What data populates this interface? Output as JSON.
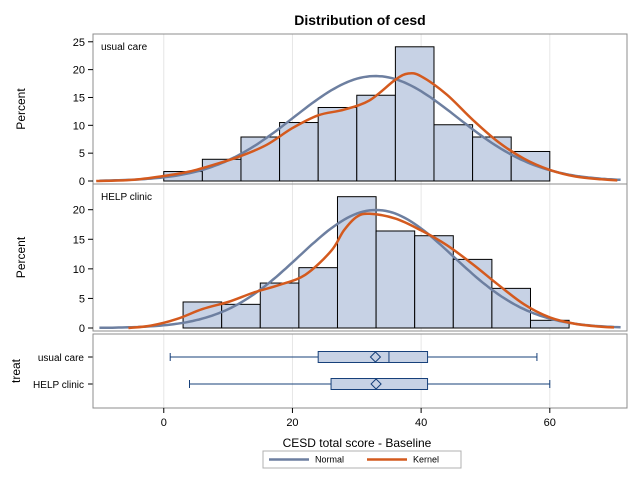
{
  "chart_data": {
    "type": "histogram",
    "title": "Distribution of cesd",
    "xlabel": "CESD total score - Baseline",
    "xlim": [
      -11,
      72
    ],
    "x_ticks": [
      0,
      20,
      40,
      60
    ],
    "colors": {
      "bar_fill": "#c7d2e5",
      "bar_stroke": "#000000",
      "normal": "#6d7fa0",
      "kernel": "#d45a1e",
      "box_stroke": "#17407a",
      "frame": "#8c8c8c",
      "grid": "#e6e6e6"
    },
    "panels": [
      {
        "label": "usual care",
        "ylabel": "Percent",
        "ylim": [
          0,
          25.5
        ],
        "y_ticks": [
          0,
          5,
          10,
          15,
          20,
          25
        ],
        "bins": [
          {
            "start": 0,
            "end": 6,
            "value": 1.7
          },
          {
            "start": 6,
            "end": 12,
            "value": 3.9
          },
          {
            "start": 12,
            "end": 18,
            "value": 7.9
          },
          {
            "start": 18,
            "end": 24,
            "value": 10.5
          },
          {
            "start": 24,
            "end": 30,
            "value": 13.2
          },
          {
            "start": 30,
            "end": 36,
            "value": 15.4
          },
          {
            "start": 36,
            "end": 42,
            "value": 24.1
          },
          {
            "start": 42,
            "end": 48,
            "value": 10.1
          },
          {
            "start": 48,
            "end": 54,
            "value": 7.9
          },
          {
            "start": 54,
            "end": 60,
            "value": 5.3
          }
        ],
        "normal": {
          "mean": 32.9,
          "sd": 12.7
        },
        "kernel": [
          [
            -10.5,
            0
          ],
          [
            -5,
            0.2
          ],
          [
            0,
            0.9
          ],
          [
            4,
            1.7
          ],
          [
            8,
            3
          ],
          [
            12,
            4.5
          ],
          [
            16,
            6.5
          ],
          [
            20,
            9.5
          ],
          [
            24,
            11.8
          ],
          [
            28,
            12.8
          ],
          [
            32,
            14.5
          ],
          [
            36,
            18.2
          ],
          [
            38,
            19.3
          ],
          [
            40,
            18.8
          ],
          [
            44,
            15.5
          ],
          [
            48,
            11
          ],
          [
            52,
            7
          ],
          [
            56,
            4
          ],
          [
            60,
            2
          ],
          [
            64,
            0.8
          ],
          [
            68,
            0.3
          ],
          [
            70.5,
            0.1
          ]
        ]
      },
      {
        "label": "HELP clinic",
        "ylabel": "Percent",
        "ylim": [
          0,
          23.5
        ],
        "y_ticks": [
          0,
          5,
          10,
          15,
          20
        ],
        "bins": [
          {
            "start": 3,
            "end": 9,
            "value": 4.4
          },
          {
            "start": 9,
            "end": 15,
            "value": 4.0
          },
          {
            "start": 15,
            "end": 21,
            "value": 7.6
          },
          {
            "start": 21,
            "end": 27,
            "value": 10.2
          },
          {
            "start": 27,
            "end": 33,
            "value": 22.2
          },
          {
            "start": 33,
            "end": 39,
            "value": 16.4
          },
          {
            "start": 39,
            "end": 45,
            "value": 15.6
          },
          {
            "start": 45,
            "end": 51,
            "value": 11.6
          },
          {
            "start": 51,
            "end": 57,
            "value": 6.7
          },
          {
            "start": 57,
            "end": 63,
            "value": 1.3
          }
        ],
        "normal": {
          "mean": 33.0,
          "sd": 12.0
        },
        "kernel": [
          [
            -5.5,
            0
          ],
          [
            -2,
            0.4
          ],
          [
            2,
            1.5
          ],
          [
            6,
            3.2
          ],
          [
            10,
            4.4
          ],
          [
            14,
            6
          ],
          [
            18,
            7.3
          ],
          [
            22,
            9
          ],
          [
            26,
            13
          ],
          [
            28,
            16.5
          ],
          [
            30,
            18.8
          ],
          [
            32,
            19.3
          ],
          [
            36,
            18.5
          ],
          [
            40,
            16.5
          ],
          [
            44,
            14
          ],
          [
            48,
            10.8
          ],
          [
            52,
            7.3
          ],
          [
            56,
            4
          ],
          [
            60,
            1.8
          ],
          [
            64,
            0.7
          ],
          [
            68,
            0.2
          ],
          [
            70,
            0.1
          ]
        ]
      }
    ],
    "boxplot": {
      "ylabel": "treat",
      "groups": [
        {
          "name": "usual care",
          "min": 1,
          "q1": 24,
          "median": 35,
          "mean": 32.9,
          "q3": 41,
          "max": 58
        },
        {
          "name": "HELP clinic",
          "min": 4,
          "q1": 26,
          "median": 33,
          "mean": 33.0,
          "q3": 41,
          "max": 60
        }
      ]
    },
    "legend": {
      "position": "bottom",
      "entries": [
        {
          "name": "Normal",
          "color_key": "normal"
        },
        {
          "name": "Kernel",
          "color_key": "kernel"
        }
      ]
    }
  }
}
